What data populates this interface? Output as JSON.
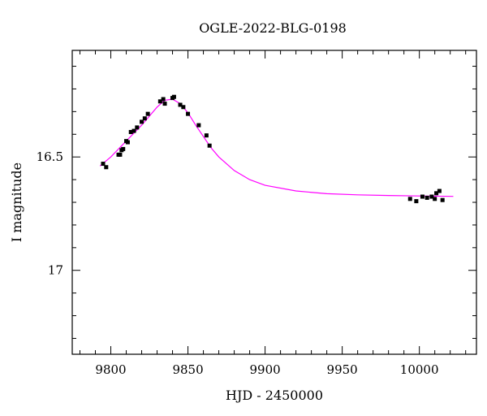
{
  "chart_data": {
    "type": "scatter",
    "title": "OGLE-2022-BLG-0198",
    "xlabel": "HJD - 2450000",
    "ylabel": "I magnitude",
    "xlim": [
      9775,
      10037
    ],
    "ylim": [
      17.37,
      16.03
    ],
    "y_inverted": true,
    "grid": false,
    "x_ticks": [
      9800,
      9850,
      9900,
      9950,
      10000
    ],
    "x_tick_labels": [
      "9800",
      "9850",
      "9900",
      "9950",
      "10000"
    ],
    "y_labeled_ticks": [
      16.5,
      17
    ],
    "y_tick_labels": [
      "16.5",
      "17"
    ],
    "series": [
      {
        "kind": "points",
        "color": "#000000",
        "x": [
          9795,
          9797,
          9805,
          9806,
          9807,
          9808,
          9810,
          9811,
          9813,
          9815,
          9817,
          9820,
          9822,
          9824,
          9832,
          9834,
          9835,
          9840,
          9841,
          9845,
          9847,
          9850,
          9857,
          9862,
          9864,
          9994,
          9998,
          10002,
          10005,
          10008,
          10010,
          10011,
          10013,
          10015
        ],
        "y": [
          16.53,
          16.545,
          16.49,
          16.49,
          16.47,
          16.465,
          16.43,
          16.435,
          16.39,
          16.385,
          16.37,
          16.345,
          16.33,
          16.31,
          16.255,
          16.245,
          16.265,
          16.24,
          16.235,
          16.27,
          16.28,
          16.31,
          16.36,
          16.405,
          16.45,
          16.685,
          16.695,
          16.675,
          16.68,
          16.675,
          16.685,
          16.66,
          16.65,
          16.69
        ],
        "yerr": 0.008
      },
      {
        "kind": "model",
        "color": "#ff00ff",
        "x": [
          9793,
          9800,
          9810,
          9820,
          9830,
          9835,
          9840,
          9845,
          9850,
          9855,
          9860,
          9865,
          9870,
          9880,
          9890,
          9900,
          9920,
          9940,
          9960,
          9980,
          10000,
          10022
        ],
        "y": [
          16.54,
          16.5,
          16.43,
          16.36,
          16.28,
          16.25,
          16.245,
          16.265,
          16.305,
          16.36,
          16.41,
          16.46,
          16.5,
          16.56,
          16.6,
          16.625,
          16.65,
          16.662,
          16.667,
          16.67,
          16.672,
          16.674
        ]
      }
    ]
  }
}
